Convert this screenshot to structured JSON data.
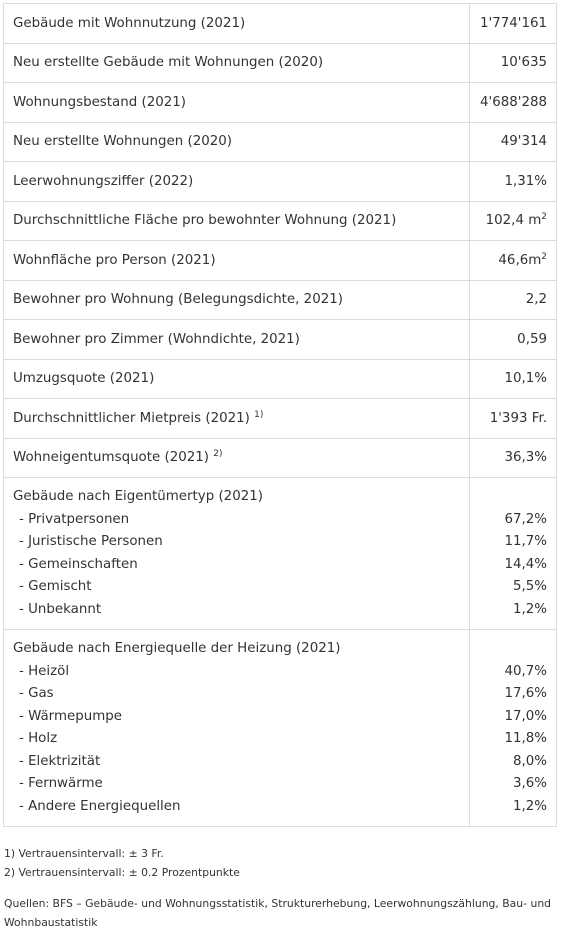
{
  "table": {
    "rows": [
      {
        "label": "Gebäude mit Wohnnutzung (2021)",
        "value": "1'774'161"
      },
      {
        "label": "Neu erstellte Gebäude mit Wohnungen (2020)",
        "value": "10'635"
      },
      {
        "label": "Wohnungsbestand (2021)",
        "value": "4'688'288"
      },
      {
        "label": "Neu erstellte Wohnungen (2020)",
        "value": "49'314"
      },
      {
        "label": "Leerwohnungsziffer (2022)",
        "value": "1,31%"
      },
      {
        "label": "Durchschnittliche Fläche pro bewohnter Wohnung (2021)",
        "value": "102,4 m",
        "value_sup": "2"
      },
      {
        "label": "Wohnfläche pro Person (2021)",
        "value": "46,6m",
        "value_sup": "2"
      },
      {
        "label": "Bewohner pro Wohnung (Belegungsdichte, 2021)",
        "value": "2,2"
      },
      {
        "label": "Bewohner pro Zimmer (Wohndichte, 2021)",
        "value": "0,59"
      },
      {
        "label": "Umzugsquote (2021)",
        "value": "10,1%"
      },
      {
        "label": "Durchschnittlicher Mietpreis (2021)",
        "label_sup": "1)",
        "value": "1'393 Fr."
      },
      {
        "label": "Wohneigentumsquote (2021)",
        "label_sup": "2)",
        "value": "36,3%"
      }
    ],
    "groups": [
      {
        "title": "Gebäude nach Eigentümertyp (2021)",
        "items": [
          [
            "- Privatpersonen",
            "67,2%"
          ],
          [
            "- Juristische Personen",
            "11,7%"
          ],
          [
            "- Gemeinschaften",
            "14,4%"
          ],
          [
            "- Gemischt",
            "5,5%"
          ],
          [
            "- Unbekannt",
            "1,2%"
          ]
        ]
      },
      {
        "title": "Gebäude nach Energiequelle der Heizung (2021)",
        "items": [
          [
            "- Heizöl",
            "40,7%"
          ],
          [
            "- Gas",
            "17,6%"
          ],
          [
            "- Wärmepumpe",
            "17,0%"
          ],
          [
            "- Holz",
            "11,8%"
          ],
          [
            "- Elektrizität",
            "8,0%"
          ],
          [
            "- Fernwärme",
            "3,6%"
          ],
          [
            "- Andere Energiequellen",
            "1,2%"
          ]
        ]
      }
    ]
  },
  "footnotes": [
    "1) Vertrauensintervall: ± 3 Fr.",
    "2) Vertrauensintervall: ± 0.2 Prozentpunkte"
  ],
  "sources": "Quellen: BFS – Gebäude- und Wohnungsstatistik, Strukturerhebung, Leerwohnungszählung, Bau- und Wohnbaustatistik"
}
